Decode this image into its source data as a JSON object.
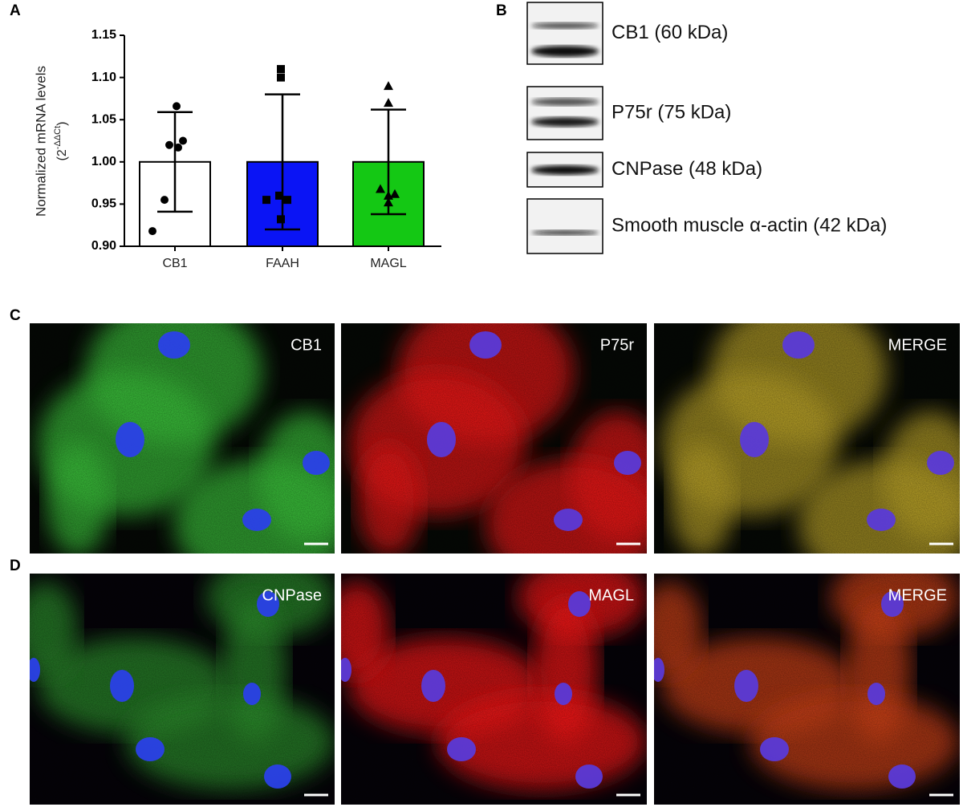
{
  "panel_labels": [
    "A",
    "B",
    "C",
    "D"
  ],
  "chart_data": {
    "type": "bar",
    "y_label": "Normalized mRNA levels",
    "y_unit_base": "(2",
    "y_unit_exp": "-ΔΔCt",
    "y_unit_close": ")",
    "categories": [
      "CB1",
      "FAAH",
      "MAGL"
    ],
    "values": [
      1.0,
      1.0,
      1.0
    ],
    "errors": [
      0.059,
      0.08,
      0.062
    ],
    "colors": [
      "#ffffff",
      "#0a14f5",
      "#14c814"
    ],
    "points": [
      [
        1.066,
        1.025,
        1.02,
        1.017,
        0.955,
        0.918
      ],
      [
        1.11,
        1.1,
        0.96,
        0.955,
        0.955,
        0.932
      ],
      [
        1.09,
        1.07,
        0.968,
        0.962,
        0.96,
        0.952
      ]
    ],
    "point_markers": [
      "circle",
      "square",
      "triangle"
    ],
    "ylim": [
      0.9,
      1.15
    ],
    "yticks": [
      {
        "value": 0.9,
        "label": "0.90"
      },
      0.95,
      {
        "value": 1.0,
        "label": "1.00"
      },
      1.05,
      {
        "value": 1.1,
        "label": "1.10"
      },
      1.15
    ]
  },
  "blots": [
    "CB1 (60 kDa)",
    "P75r (75 kDa)",
    "CNPase (48 kDa)",
    "Smooth muscle α-actin (42 kDa)"
  ],
  "panels_c": [
    "CB1",
    "P75r",
    "MERGE"
  ],
  "panels_d": [
    "CNPase",
    "MAGL",
    "MERGE"
  ]
}
